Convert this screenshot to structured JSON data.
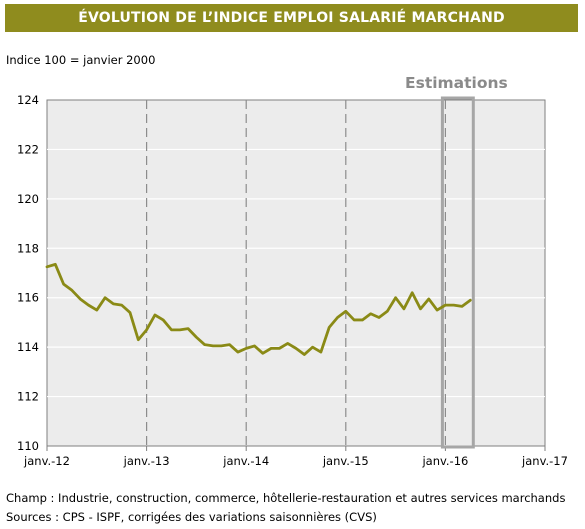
{
  "header": {
    "title": "ÉVOLUTION DE L’INDICE EMPLOI SALARIÉ MARCHAND"
  },
  "subtitle": "Indice 100 = janvier 2000",
  "estimations_label": "Estimations",
  "notes": {
    "champ": "Champ : Industrie, construction, commerce, hôtellerie-restauration et autres services marchands",
    "sources": "Sources : CPS - ISPF, corrigées des variations saisonnières (CVS)"
  },
  "colors": {
    "banner": "#8f8c1e",
    "line": "#8a8a16",
    "plot_background": "#ececec",
    "estimation_box": "#a6a6a6"
  },
  "chart_data": {
    "type": "line",
    "series": [
      {
        "values": [
          117.25,
          117.35,
          116.55,
          116.3,
          115.95,
          115.7,
          115.5,
          116.0,
          115.75,
          115.7,
          115.4,
          114.3,
          114.7,
          115.3,
          115.1,
          114.7,
          114.7,
          114.75,
          114.4,
          114.1,
          114.05,
          114.05,
          114.1,
          113.8,
          113.95,
          114.05,
          113.75,
          113.95,
          113.95,
          114.15,
          113.95,
          113.7,
          114.0,
          113.8,
          114.8,
          115.2,
          115.45,
          115.1,
          115.1,
          115.35,
          115.2,
          115.45,
          116.0,
          115.55,
          116.2,
          115.55,
          115.95,
          115.5,
          115.7,
          115.7,
          115.65,
          115.9
        ]
      }
    ],
    "x_months_from_janv_12": [
      0,
      1,
      2,
      3,
      4,
      5,
      6,
      7,
      8,
      9,
      10,
      11,
      12,
      13,
      14,
      15,
      16,
      17,
      18,
      19,
      20,
      21,
      22,
      23,
      24,
      25,
      26,
      27,
      28,
      29,
      30,
      31,
      32,
      33,
      34,
      35,
      36,
      37,
      38,
      39,
      40,
      41,
      42,
      43,
      44,
      45,
      46,
      47,
      48,
      49,
      50,
      51
    ],
    "x_tick_labels": [
      "janv.-12",
      "janv.-13",
      "janv.-14",
      "janv.-15",
      "janv.-16",
      "janv.-17"
    ],
    "y_ticks": [
      110,
      112,
      114,
      116,
      118,
      120,
      122,
      124
    ],
    "ylim": [
      110,
      124
    ],
    "estimation_period_months": [
      48,
      51
    ],
    "grid": true
  }
}
